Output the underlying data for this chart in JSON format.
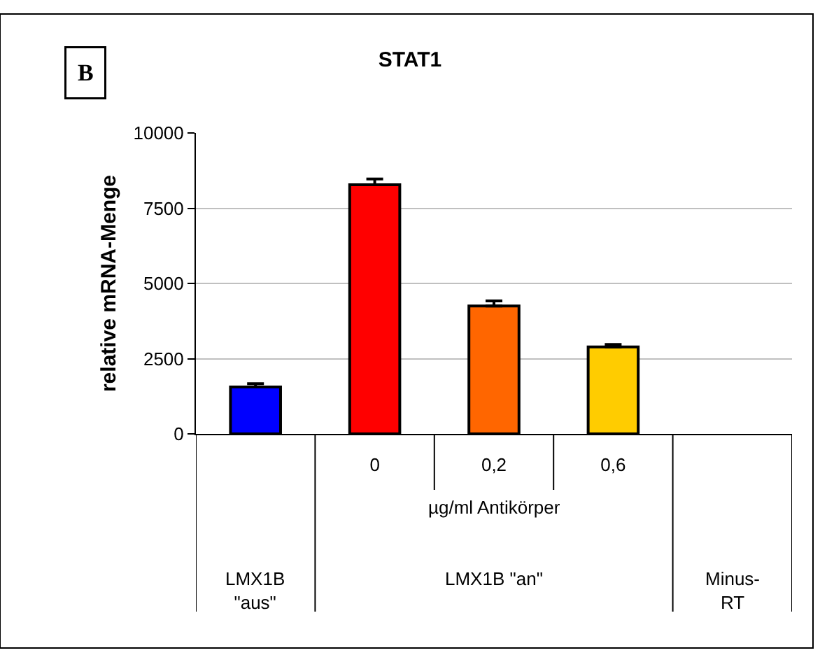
{
  "chart_data": {
    "type": "bar",
    "title": "STAT1",
    "ylabel": "relative mRNA-Menge",
    "categories": [
      null,
      "0",
      "0,2",
      "0,6",
      null
    ],
    "values": [
      1560,
      8280,
      4250,
      2890,
      null
    ],
    "errors": [
      110,
      190,
      170,
      80,
      null
    ],
    "colors": [
      "#0000ff",
      "#ff0000",
      "#ff6600",
      "#ffcc00",
      null
    ],
    "ylim": [
      0,
      10000
    ],
    "yticks": [
      0,
      2500,
      5000,
      7500,
      10000
    ],
    "grid": "y",
    "legend": false,
    "annotations": [
      "B",
      "µg/ml Antikörper",
      "LMX1B\n\"aus\"",
      "LMX1B \"an\"",
      "Minus-\nRT"
    ]
  }
}
